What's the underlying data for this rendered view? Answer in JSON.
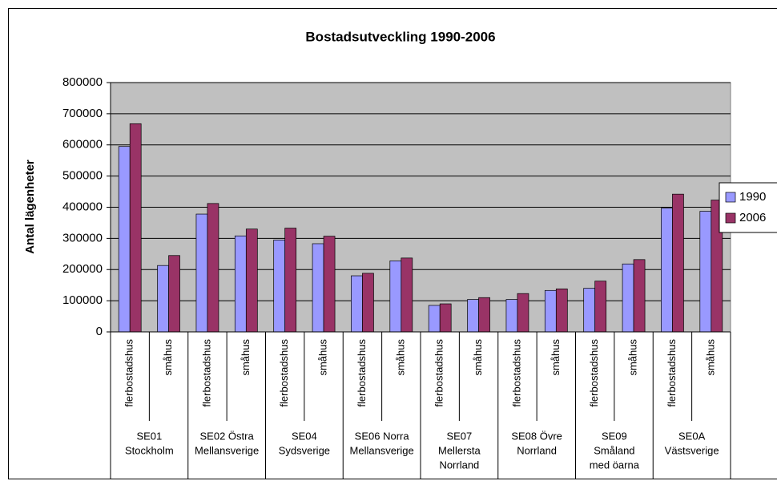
{
  "chart_data": {
    "type": "bar",
    "title": "Bostadsutveckling 1990-2006",
    "y_label": "Antal lägenheter",
    "categories": [
      "flerbostadshus",
      "småhus",
      "flerbostadshus",
      "småhus",
      "flerbostadshus",
      "småhus",
      "flerbostadshus",
      "småhus",
      "flerbostadshus",
      "småhus",
      "flerbostadshus",
      "småhus",
      "flerbostadshus",
      "småhus",
      "flerbostadshus",
      "småhus"
    ],
    "groups": [
      [
        "SE01",
        "Stockholm"
      ],
      [
        "SE02 Östra",
        "Mellansverige"
      ],
      [
        "SE04",
        "Sydsverige"
      ],
      [
        "SE06 Norra",
        "Mellansverige"
      ],
      [
        "SE07",
        "Mellersta",
        "Norrland"
      ],
      [
        "SE08 Övre",
        "Norrland"
      ],
      [
        "SE09",
        "Småland",
        "med öarna"
      ],
      [
        "SE0A",
        "Västsverige"
      ]
    ],
    "series": [
      {
        "name": "1990",
        "color": "#9999ff",
        "values": [
          595000,
          213000,
          378000,
          308000,
          295000,
          283000,
          180000,
          228000,
          85000,
          104000,
          104000,
          133000,
          140000,
          218000,
          397000,
          387000
        ]
      },
      {
        "name": "2006",
        "color": "#993366",
        "values": [
          668000,
          245000,
          412000,
          330000,
          333000,
          307000,
          188000,
          237000,
          90000,
          110000,
          123000,
          138000,
          163000,
          232000,
          442000,
          423000
        ]
      }
    ],
    "ylim": [
      0,
      800000
    ],
    "yticks": [
      0,
      100000,
      200000,
      300000,
      400000,
      500000,
      600000,
      700000,
      800000
    ],
    "grid": true,
    "plot_background": "#c0c0c0",
    "legend": "right"
  }
}
